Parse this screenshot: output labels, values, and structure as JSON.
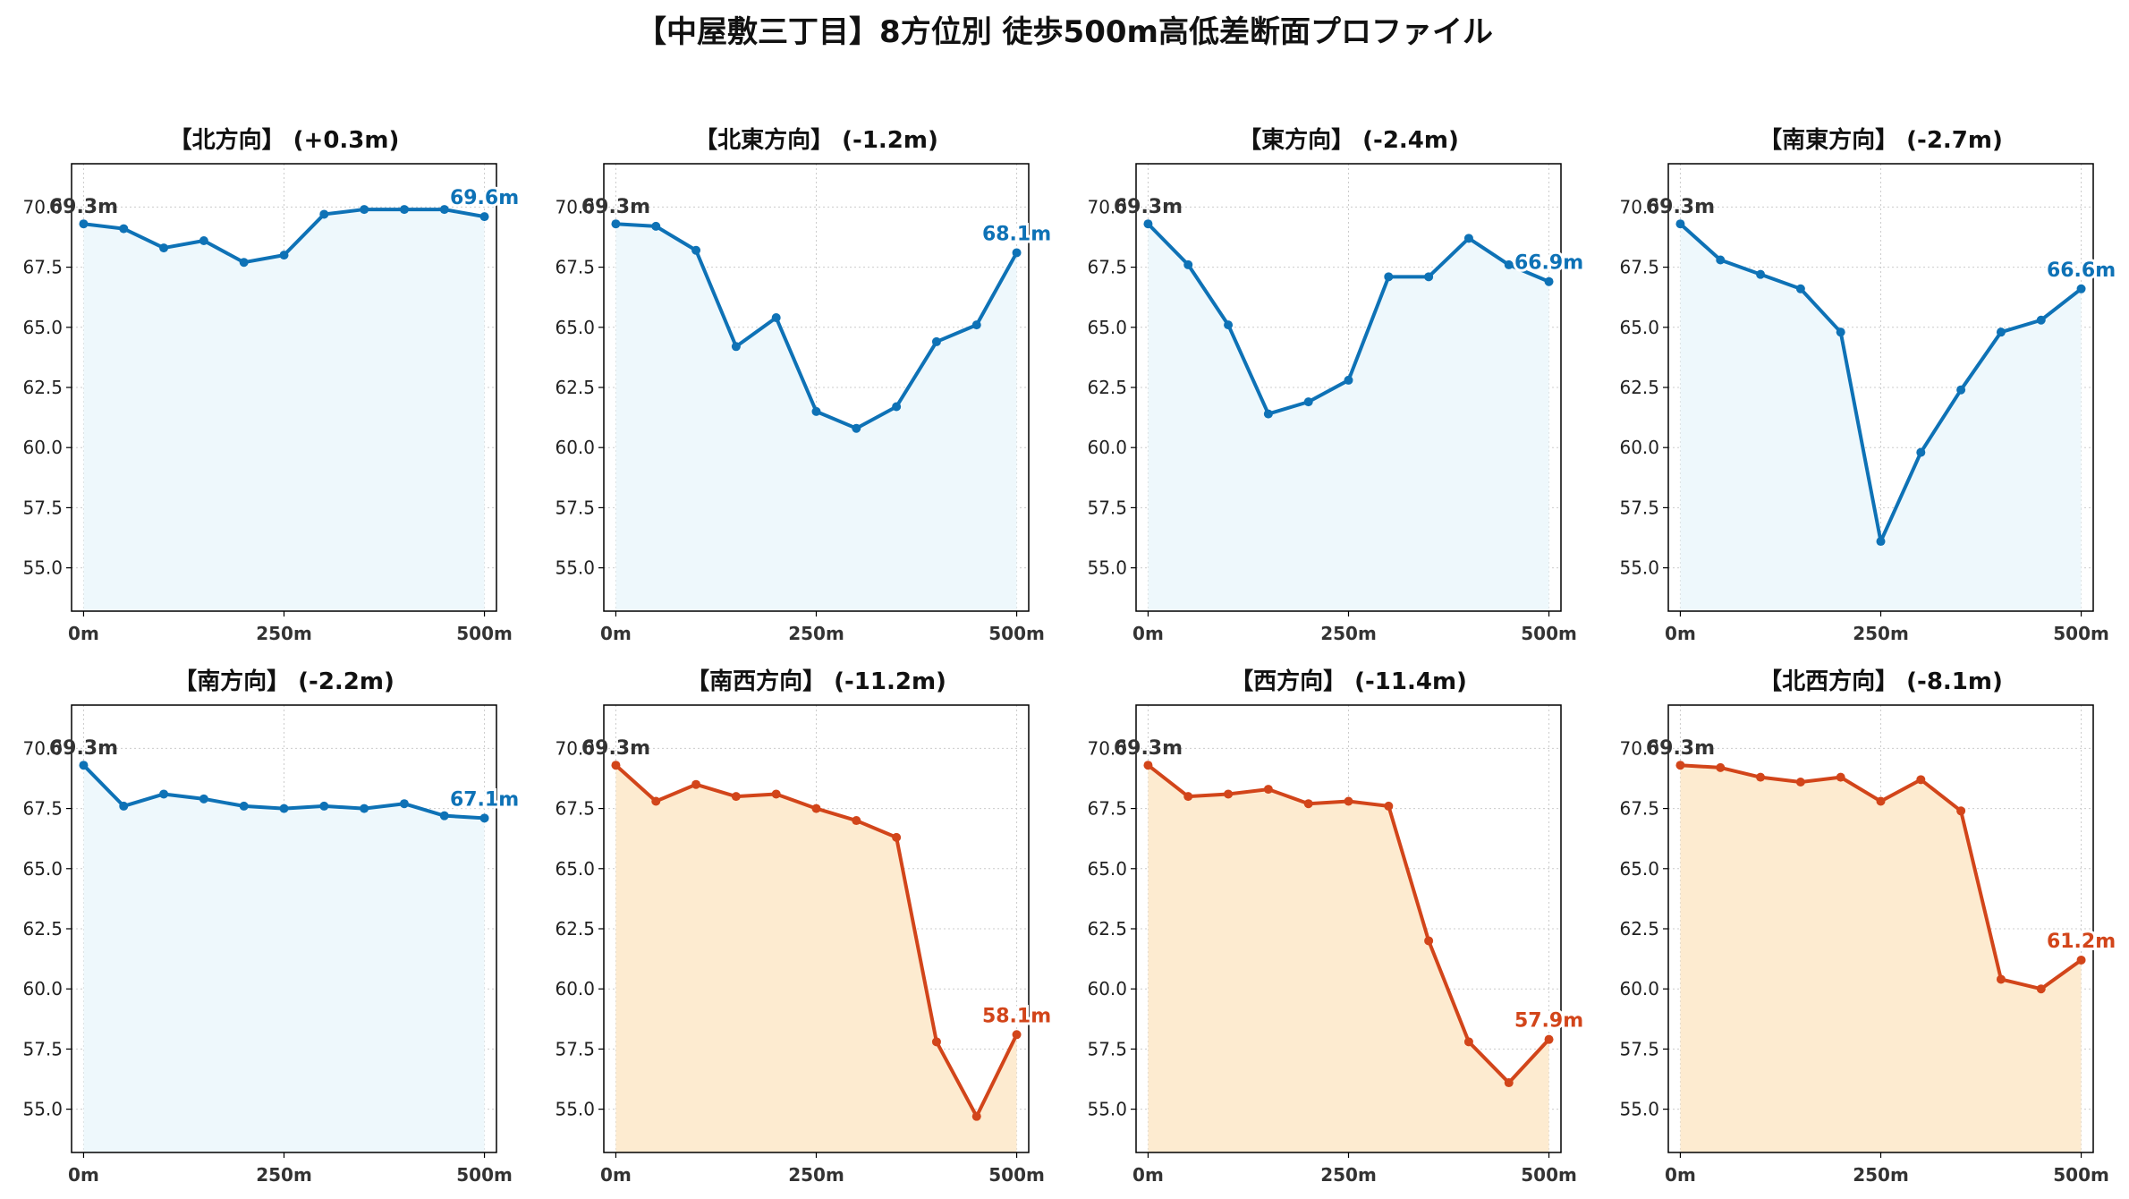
{
  "title": "【中屋敷三丁目】8方位別 徒歩500m高低差断面プロファイル",
  "colors": {
    "up_line": "#0e72b6",
    "up_fill": "#eef8fc",
    "down_line": "#d2451a",
    "down_fill": "#fdebd0",
    "start_label": "#333333",
    "grid": "#cccccc"
  },
  "chart_data": [
    {
      "type": "line",
      "title": "【北方向】 (+0.3m)",
      "x": [
        0,
        50,
        100,
        150,
        200,
        250,
        300,
        350,
        400,
        450,
        500
      ],
      "values": [
        69.3,
        69.1,
        68.3,
        68.6,
        67.7,
        68.0,
        69.7,
        69.9,
        69.9,
        69.9,
        69.6
      ],
      "start_label": "69.3m",
      "end_label": "69.6m",
      "tone": "up",
      "xticks": [
        "0m",
        "250m",
        "500m"
      ],
      "yticks": [
        "55.0",
        "57.5",
        "60.0",
        "62.5",
        "65.0",
        "67.5",
        "70.0"
      ],
      "ylim": [
        53.2,
        71.8
      ],
      "xlim": [
        -15,
        515
      ],
      "grid": true
    },
    {
      "type": "line",
      "title": "【北東方向】 (-1.2m)",
      "x": [
        0,
        50,
        100,
        150,
        200,
        250,
        300,
        350,
        400,
        450,
        500
      ],
      "values": [
        69.3,
        69.2,
        68.2,
        64.2,
        65.4,
        61.5,
        60.8,
        61.7,
        64.4,
        65.1,
        68.1
      ],
      "start_label": "69.3m",
      "end_label": "68.1m",
      "tone": "up",
      "xticks": [
        "0m",
        "250m",
        "500m"
      ],
      "yticks": [
        "55.0",
        "57.5",
        "60.0",
        "62.5",
        "65.0",
        "67.5",
        "70.0"
      ],
      "ylim": [
        53.2,
        71.8
      ],
      "xlim": [
        -15,
        515
      ],
      "grid": true
    },
    {
      "type": "line",
      "title": "【東方向】 (-2.4m)",
      "x": [
        0,
        50,
        100,
        150,
        200,
        250,
        300,
        350,
        400,
        450,
        500
      ],
      "values": [
        69.3,
        67.6,
        65.1,
        61.4,
        61.9,
        62.8,
        67.1,
        67.1,
        68.7,
        67.6,
        66.9
      ],
      "start_label": "69.3m",
      "end_label": "66.9m",
      "tone": "up",
      "xticks": [
        "0m",
        "250m",
        "500m"
      ],
      "yticks": [
        "55.0",
        "57.5",
        "60.0",
        "62.5",
        "65.0",
        "67.5",
        "70.0"
      ],
      "ylim": [
        53.2,
        71.8
      ],
      "xlim": [
        -15,
        515
      ],
      "grid": true
    },
    {
      "type": "line",
      "title": "【南東方向】 (-2.7m)",
      "x": [
        0,
        50,
        100,
        150,
        200,
        250,
        300,
        350,
        400,
        450,
        500
      ],
      "values": [
        69.3,
        67.8,
        67.2,
        66.6,
        64.8,
        56.1,
        59.8,
        62.4,
        64.8,
        65.3,
        66.6
      ],
      "start_label": "69.3m",
      "end_label": "66.6m",
      "tone": "up",
      "xticks": [
        "0m",
        "250m",
        "500m"
      ],
      "yticks": [
        "55.0",
        "57.5",
        "60.0",
        "62.5",
        "65.0",
        "67.5",
        "70.0"
      ],
      "ylim": [
        53.2,
        71.8
      ],
      "xlim": [
        -15,
        515
      ],
      "grid": true
    },
    {
      "type": "line",
      "title": "【南方向】 (-2.2m)",
      "x": [
        0,
        50,
        100,
        150,
        200,
        250,
        300,
        350,
        400,
        450,
        500
      ],
      "values": [
        69.3,
        67.6,
        68.1,
        67.9,
        67.6,
        67.5,
        67.6,
        67.5,
        67.7,
        67.2,
        67.1
      ],
      "start_label": "69.3m",
      "end_label": "67.1m",
      "tone": "up",
      "xticks": [
        "0m",
        "250m",
        "500m"
      ],
      "yticks": [
        "55.0",
        "57.5",
        "60.0",
        "62.5",
        "65.0",
        "67.5",
        "70.0"
      ],
      "ylim": [
        53.2,
        71.8
      ],
      "xlim": [
        -15,
        515
      ],
      "grid": true
    },
    {
      "type": "line",
      "title": "【南西方向】 (-11.2m)",
      "x": [
        0,
        50,
        100,
        150,
        200,
        250,
        300,
        350,
        400,
        450,
        500
      ],
      "values": [
        69.3,
        67.8,
        68.5,
        68.0,
        68.1,
        67.5,
        67.0,
        66.3,
        57.8,
        54.7,
        58.1
      ],
      "start_label": "69.3m",
      "end_label": "58.1m",
      "tone": "down",
      "xticks": [
        "0m",
        "250m",
        "500m"
      ],
      "yticks": [
        "55.0",
        "57.5",
        "60.0",
        "62.5",
        "65.0",
        "67.5",
        "70.0"
      ],
      "ylim": [
        53.2,
        71.8
      ],
      "xlim": [
        -15,
        515
      ],
      "grid": true
    },
    {
      "type": "line",
      "title": "【西方向】 (-11.4m)",
      "x": [
        0,
        50,
        100,
        150,
        200,
        250,
        300,
        350,
        400,
        450,
        500
      ],
      "values": [
        69.3,
        68.0,
        68.1,
        68.3,
        67.7,
        67.8,
        67.6,
        62.0,
        57.8,
        56.1,
        57.9
      ],
      "start_label": "69.3m",
      "end_label": "57.9m",
      "tone": "down",
      "xticks": [
        "0m",
        "250m",
        "500m"
      ],
      "yticks": [
        "55.0",
        "57.5",
        "60.0",
        "62.5",
        "65.0",
        "67.5",
        "70.0"
      ],
      "ylim": [
        53.2,
        71.8
      ],
      "xlim": [
        -15,
        515
      ],
      "grid": true
    },
    {
      "type": "line",
      "title": "【北西方向】 (-8.1m)",
      "x": [
        0,
        50,
        100,
        150,
        200,
        250,
        300,
        350,
        400,
        450,
        500
      ],
      "values": [
        69.3,
        69.2,
        68.8,
        68.6,
        68.8,
        67.8,
        68.7,
        67.4,
        60.4,
        60.0,
        61.2
      ],
      "start_label": "69.3m",
      "end_label": "61.2m",
      "tone": "down",
      "xticks": [
        "0m",
        "250m",
        "500m"
      ],
      "yticks": [
        "55.0",
        "57.5",
        "60.0",
        "62.5",
        "65.0",
        "67.5",
        "70.0"
      ],
      "ylim": [
        53.2,
        71.8
      ],
      "xlim": [
        -15,
        515
      ],
      "grid": true
    }
  ]
}
